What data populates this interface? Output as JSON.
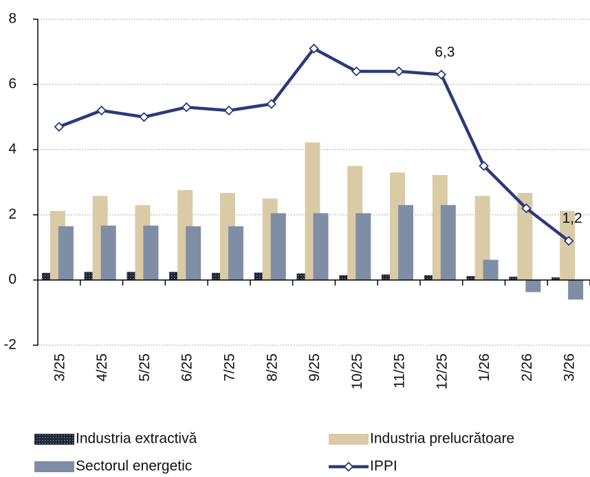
{
  "chart_data": {
    "type": "bar",
    "categories": [
      "3/25",
      "4/25",
      "5/25",
      "6/25",
      "7/25",
      "8/25",
      "9/25",
      "10/25",
      "11/25",
      "12/25",
      "1/26",
      "2/26",
      "3/26"
    ],
    "series": [
      {
        "name": "Industria extractivă",
        "type": "bar",
        "color": "#1c2433",
        "values": [
          0.22,
          0.25,
          0.25,
          0.25,
          0.22,
          0.23,
          0.2,
          0.15,
          0.17,
          0.15,
          0.12,
          0.1,
          0.08
        ]
      },
      {
        "name": "Industria prelucrătoare",
        "type": "bar",
        "color": "#d9cba6",
        "values": [
          2.12,
          2.58,
          2.3,
          2.76,
          2.67,
          2.5,
          4.22,
          3.5,
          3.3,
          3.22,
          2.58,
          2.67,
          2.12
        ]
      },
      {
        "name": "Sectorul energetic",
        "type": "bar",
        "color": "#7f8ea5",
        "values": [
          1.65,
          1.67,
          1.67,
          1.65,
          1.65,
          2.05,
          2.05,
          2.05,
          2.3,
          2.3,
          0.62,
          -0.37,
          -0.6
        ]
      },
      {
        "name": "IPPI",
        "type": "line",
        "color": "#2b3a7a",
        "values": [
          4.7,
          5.2,
          5.0,
          5.3,
          5.2,
          5.4,
          7.1,
          6.4,
          6.4,
          6.3,
          3.5,
          2.2,
          1.2
        ],
        "value_labels": [
          null,
          null,
          null,
          null,
          null,
          null,
          null,
          null,
          null,
          "6,3",
          null,
          null,
          "1,2"
        ]
      }
    ],
    "ylim": [
      -2,
      8
    ],
    "yticks": [
      8,
      6,
      4,
      2,
      0,
      -2
    ],
    "grid": true
  }
}
